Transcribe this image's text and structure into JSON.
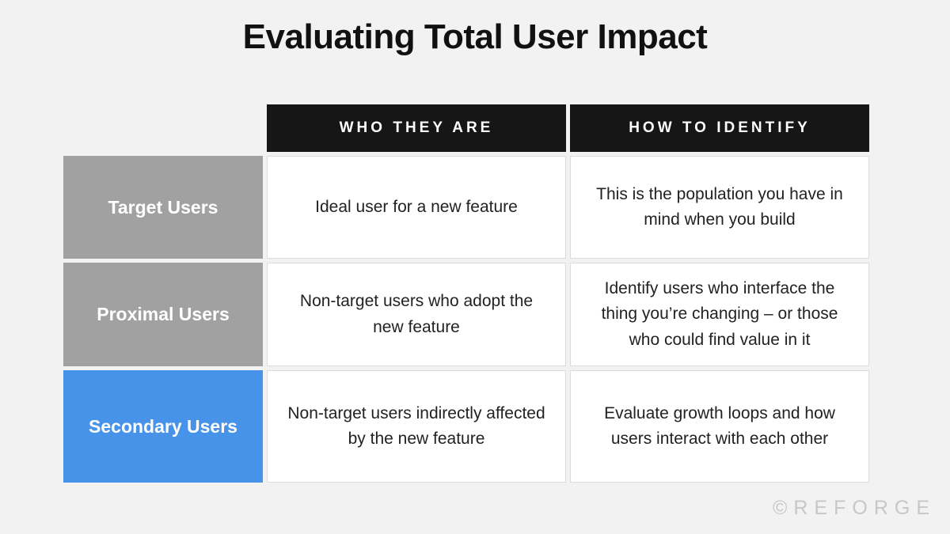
{
  "title": "Evaluating Total User Impact",
  "table": {
    "columns": [
      {
        "label": "WHO THEY ARE"
      },
      {
        "label": "HOW TO IDENTIFY"
      }
    ],
    "rows": [
      {
        "label": "Target Users",
        "who": "Ideal user for a new feature",
        "identify": "This is the population you have in mind when you build"
      },
      {
        "label": "Proximal Users",
        "who": "Non-target users who adopt the new feature",
        "identify": "Identify users who interface the thing you’re changing – or those who could find value in it"
      },
      {
        "label": "Secondary Users",
        "who": "Non-target users indirectly affected by the new feature",
        "identify": "Evaluate growth loops and how users interact with each other"
      }
    ]
  },
  "watermark": "©REFORGE",
  "colors": {
    "background": "#f2f2f2",
    "header_bg": "#161616",
    "header_text": "#ffffff",
    "row_label_gray": "#a1a1a1",
    "row_label_blue": "#4793ea",
    "cell_bg": "#ffffff",
    "cell_border": "#dcdcdc",
    "cell_text": "#222222",
    "title_text": "#111111",
    "watermark_text": "#c7c7c7"
  }
}
